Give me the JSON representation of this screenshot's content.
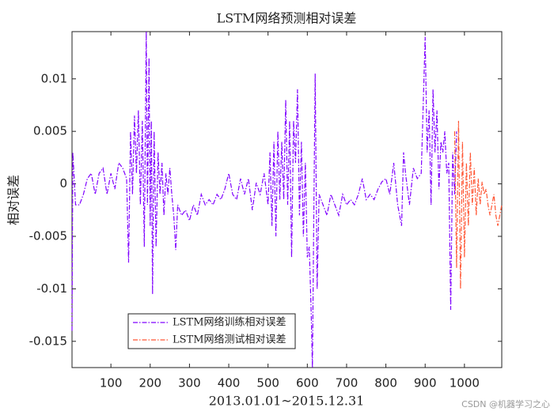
{
  "chart_data": {
    "type": "line",
    "title": "LSTM网络预测相对误差",
    "x_label": "2013.01.01~2015.12.31",
    "y_label": "相对误差",
    "watermark": "CSDN @机器学习之心",
    "xlim": [
      1,
      1095
    ],
    "xticks": [
      100,
      200,
      300,
      400,
      500,
      600,
      700,
      800,
      900,
      1000
    ],
    "ylim": [
      -0.0175,
      0.0145
    ],
    "yticks": [
      -0.015,
      -0.01,
      -0.005,
      0,
      0.005,
      0.01
    ],
    "legend": "lower left",
    "series": [
      {
        "name": "LSTM网络训练相对误差",
        "color": "#7f00ff",
        "x": [
          1,
          3,
          10,
          20,
          30,
          40,
          50,
          60,
          70,
          80,
          90,
          100,
          110,
          120,
          130,
          140,
          145,
          150,
          155,
          160,
          165,
          170,
          175,
          180,
          185,
          190,
          193,
          197,
          200,
          203,
          206,
          210,
          215,
          220,
          225,
          230,
          235,
          240,
          245,
          250,
          255,
          260,
          265,
          270,
          280,
          290,
          300,
          310,
          320,
          330,
          340,
          350,
          360,
          370,
          380,
          390,
          400,
          410,
          420,
          430,
          440,
          450,
          460,
          470,
          480,
          490,
          500,
          505,
          510,
          515,
          520,
          525,
          530,
          535,
          540,
          545,
          550,
          555,
          560,
          565,
          570,
          575,
          580,
          585,
          590,
          595,
          600,
          605,
          610,
          613,
          616,
          620,
          625,
          630,
          640,
          650,
          660,
          670,
          680,
          690,
          700,
          710,
          720,
          730,
          740,
          750,
          760,
          770,
          780,
          790,
          800,
          810,
          820,
          830,
          840,
          845,
          850,
          860,
          870,
          880,
          890,
          895,
          900,
          905,
          910,
          915,
          920,
          925,
          930,
          935,
          940,
          945,
          950,
          955,
          960,
          965,
          970,
          975,
          980
        ],
        "values": [
          -0.014,
          0.003,
          -0.002,
          -0.002,
          -0.001,
          0.0005,
          0.001,
          -0.001,
          0.001,
          0.0015,
          -0.001,
          0.001,
          -0.0005,
          0.002,
          0.0015,
          0.0005,
          -0.0075,
          0.005,
          -0.001,
          0.0065,
          0.001,
          0.007,
          -0.002,
          0.006,
          -0.006,
          0.0145,
          -0.002,
          0.012,
          -0.004,
          0.006,
          -0.0105,
          0.005,
          -0.006,
          0.003,
          -0.001,
          0.002,
          -0.003,
          0.001,
          -0.001,
          0.0015,
          -0.001,
          -0.003,
          -0.0063,
          -0.002,
          -0.003,
          -0.0025,
          -0.0035,
          -0.002,
          -0.003,
          -0.001,
          -0.002,
          -0.0015,
          -0.002,
          -0.001,
          -0.0015,
          -0.0005,
          0.001,
          -0.001,
          -0.0015,
          0.0005,
          -0.001,
          0.0005,
          -0.0025,
          0.0001,
          -0.001,
          0.001,
          -0.002,
          0.003,
          -0.004,
          0.004,
          -0.005,
          0.005,
          -0.0015,
          0.004,
          -0.0015,
          0.008,
          -0.002,
          0.006,
          -0.007,
          0.006,
          0.002,
          0.009,
          -0.003,
          0.004,
          -0.005,
          0.002,
          -0.007,
          -0.006,
          -0.0125,
          -0.0175,
          -0.005,
          0.0105,
          -0.01,
          -0.001,
          -0.002,
          -0.003,
          -0.001,
          -0.002,
          -0.003,
          -0.001,
          -0.002,
          -0.0015,
          -0.002,
          -0.001,
          0.0005,
          -0.0015,
          -0.001,
          -0.0015,
          -0.0005,
          0.0002,
          0.0005,
          -0.001,
          0.002,
          -0.002,
          -0.004,
          0.003,
          0.001,
          -0.002,
          0.0015,
          0.0005,
          0.001,
          0.0075,
          0.014,
          0.003,
          0.007,
          -0.002,
          0.009,
          0.003,
          0.007,
          -0.0005,
          0.004,
          0.003,
          0.005,
          0.001,
          0.002,
          -0.012,
          0.003,
          -0.001,
          0.005
        ]
      },
      {
        "name": "LSTM网络测试相对误差",
        "color": "#ff5533",
        "x": [
          975,
          980,
          985,
          990,
          995,
          1000,
          1005,
          1010,
          1015,
          1020,
          1025,
          1030,
          1035,
          1040,
          1045,
          1050,
          1055,
          1060,
          1065,
          1070,
          1075,
          1080,
          1085,
          1090,
          1095
        ],
        "values": [
          0.005,
          -0.008,
          0.006,
          -0.01,
          0.004,
          -0.007,
          0.002,
          -0.004,
          0.003,
          -0.002,
          0.0015,
          -0.003,
          0.0005,
          -0.002,
          0.0002,
          -0.001,
          -0.0005,
          -0.002,
          -0.003,
          -0.002,
          -0.001,
          -0.003,
          -0.004,
          -0.003,
          -0.002
        ]
      }
    ]
  }
}
